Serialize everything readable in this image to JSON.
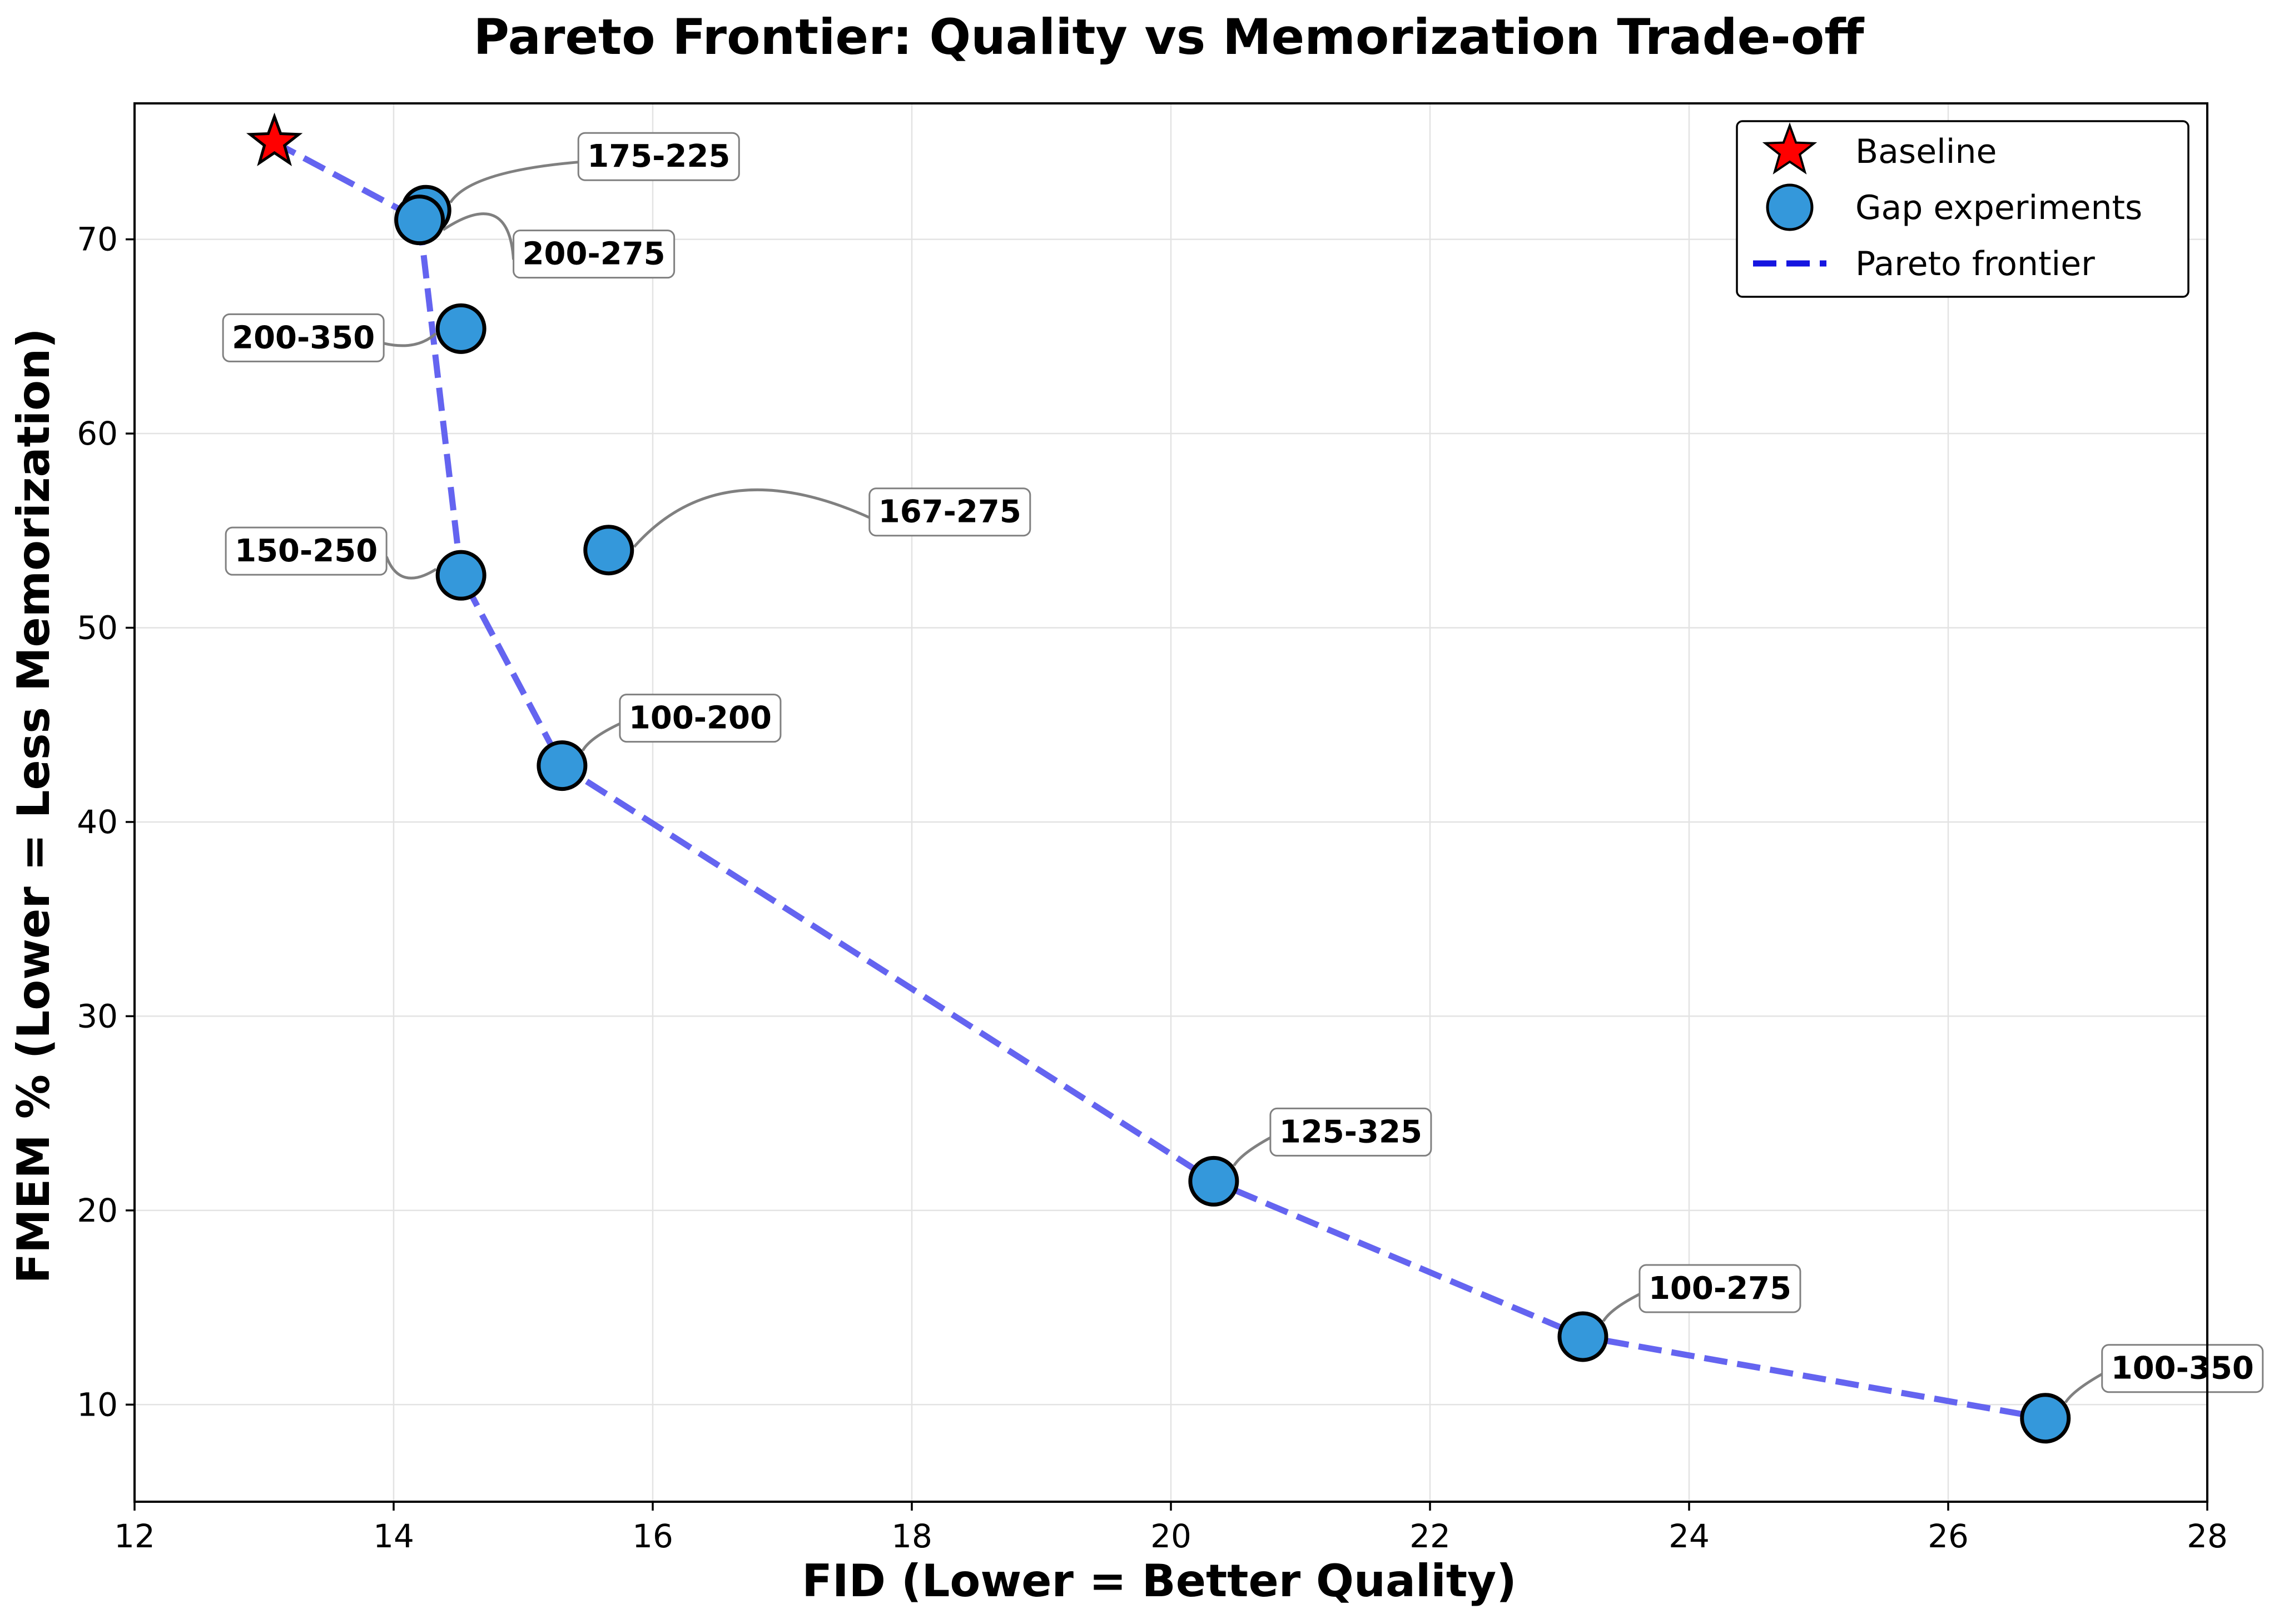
{
  "chart_data": {
    "type": "scatter",
    "title": "Pareto Frontier: Quality vs Memorization Trade-off",
    "xlabel": "FID (Lower = Better Quality)",
    "ylabel": "FMEM % (Lower = Less Memorization)",
    "xlim": [
      12,
      28
    ],
    "ylim": [
      5,
      77
    ],
    "xticks": [
      12,
      14,
      16,
      18,
      20,
      22,
      24,
      26,
      28
    ],
    "yticks": [
      10,
      20,
      30,
      40,
      50,
      60,
      70
    ],
    "grid": true,
    "legend_position": "top-right",
    "colors": {
      "baseline_fill": "#ff0000",
      "point_fill": "#3498db",
      "frontier_line": "#6464f0",
      "legend_frontier": "#1515e0",
      "connector": "#808080"
    },
    "series": [
      {
        "name": "Baseline",
        "marker": "star",
        "points": [
          {
            "x": 13.08,
            "y": 75.0
          }
        ]
      },
      {
        "name": "Gap experiments",
        "marker": "circle",
        "points": [
          {
            "x": 14.25,
            "y": 71.5,
            "label": "175-225"
          },
          {
            "x": 14.2,
            "y": 71.0,
            "label": "200-275"
          },
          {
            "x": 14.52,
            "y": 65.4,
            "label": "200-350"
          },
          {
            "x": 15.66,
            "y": 54.0,
            "label": "167-275"
          },
          {
            "x": 14.52,
            "y": 52.7,
            "label": "150-250"
          },
          {
            "x": 15.3,
            "y": 42.9,
            "label": "100-200"
          },
          {
            "x": 20.33,
            "y": 21.5,
            "label": "125-325"
          },
          {
            "x": 23.18,
            "y": 13.5,
            "label": "100-275"
          },
          {
            "x": 26.75,
            "y": 9.3,
            "label": "100-350"
          }
        ]
      },
      {
        "name": "Pareto frontier",
        "marker": "dashed-line",
        "points": [
          {
            "x": 13.08,
            "y": 75.0
          },
          {
            "x": 14.2,
            "y": 71.0
          },
          {
            "x": 14.52,
            "y": 52.7
          },
          {
            "x": 15.3,
            "y": 42.9
          },
          {
            "x": 20.33,
            "y": 21.5
          },
          {
            "x": 23.18,
            "y": 13.5
          },
          {
            "x": 26.75,
            "y": 9.3
          }
        ]
      }
    ]
  }
}
